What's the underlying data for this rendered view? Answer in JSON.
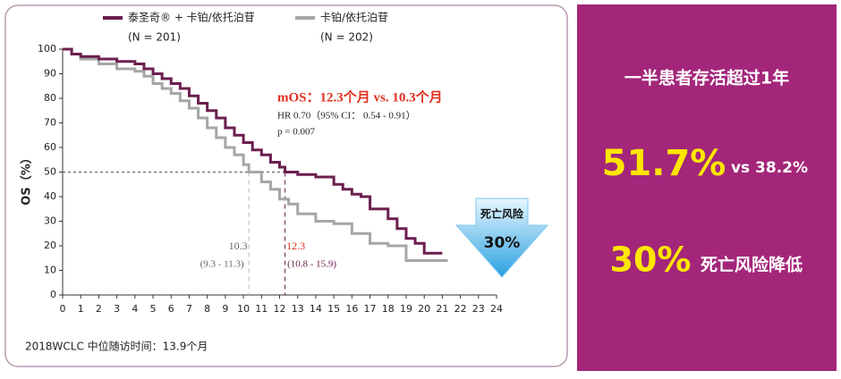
{
  "chart_data": {
    "type": "line",
    "series": [
      {
        "name": "泰圣奇® + 卡铂/依托泊苷",
        "n_label": "(N = 201)",
        "color": "#6b1f4f",
        "x": [
          0,
          0.5,
          1,
          2,
          3,
          4,
          4.5,
          5,
          5.5,
          6,
          6.5,
          7,
          7.5,
          8,
          8.5,
          9,
          9.5,
          10,
          10.5,
          11,
          11.5,
          12,
          12.3,
          13,
          14,
          15,
          15.5,
          16,
          16.5,
          17,
          18,
          18.5,
          19,
          19.5,
          20,
          21
        ],
        "values": [
          100,
          98,
          97,
          96,
          95,
          94,
          92,
          90,
          88,
          86,
          84,
          81,
          78,
          75,
          72,
          68,
          65,
          62,
          59,
          57,
          54,
          52,
          50,
          49,
          48,
          45,
          43,
          41,
          40,
          35,
          31,
          27,
          23,
          21,
          17,
          17
        ]
      },
      {
        "name": "卡铂/依托泊苷",
        "n_label": "(N = 202)",
        "color": "#a6a6a6",
        "x": [
          0,
          0.5,
          1,
          2,
          3,
          4,
          4.5,
          5,
          5.5,
          6,
          6.5,
          7,
          7.5,
          8,
          8.5,
          9,
          9.5,
          10,
          10.3,
          11,
          11.5,
          12,
          12.5,
          13,
          14,
          15,
          16,
          17,
          18,
          19,
          21.3
        ],
        "values": [
          100,
          98,
          96,
          94,
          92,
          91,
          89,
          86,
          84,
          82,
          79,
          76,
          72,
          68,
          64,
          60,
          57,
          53,
          50,
          46,
          43,
          39,
          37,
          33,
          30,
          29,
          25,
          21,
          20,
          14,
          14
        ]
      }
    ],
    "y_label": "OS（%）",
    "xlim": [
      0,
      24
    ],
    "xticks": [
      0,
      1,
      2,
      3,
      4,
      5,
      6,
      7,
      8,
      9,
      10,
      11,
      12,
      13,
      14,
      15,
      16,
      17,
      18,
      19,
      20,
      21,
      22,
      23,
      24
    ],
    "ylim": [
      0,
      100
    ],
    "yticks": [
      0,
      10,
      20,
      30,
      40,
      50,
      60,
      70,
      80,
      90,
      100
    ],
    "reference_y": 50,
    "medians": [
      10.3,
      12.3
    ],
    "median_ci": [
      "(9.3 - 11.3)",
      "(10.8 - 15.9)"
    ],
    "annotations": [
      "mOS：12.3个月 vs. 10.3个月",
      "HR 0.70（95% CI： 0.54 - 0.91）",
      "p = 0.007"
    ],
    "badge": {
      "title": "死亡风险",
      "value": "30%"
    },
    "footnote": "2018WCLC 中位随访时间：13.9个月"
  },
  "panel": {
    "headline": "一半患者存活超过1年",
    "big1": "51.7%",
    "small1": "vs 38.2%",
    "big2": "30%",
    "small2": "死亡风险降低"
  }
}
